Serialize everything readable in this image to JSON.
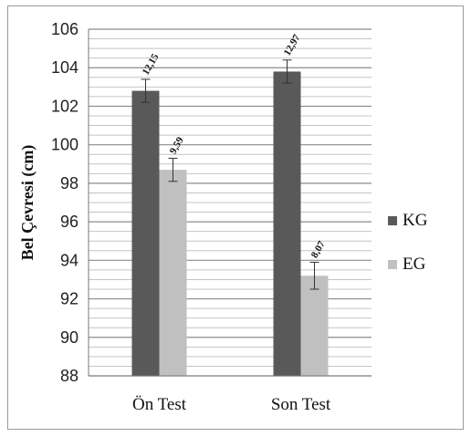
{
  "chart_data": {
    "type": "bar",
    "title": "",
    "xlabel": "",
    "ylabel": "Bel Çevresi (cm)",
    "ylim": [
      88,
      106
    ],
    "ytick_step": 2,
    "ytick_labels": [
      "88",
      "90",
      "92",
      "94",
      "96",
      "98",
      "100",
      "102",
      "104",
      "106"
    ],
    "minor_grid_step": 0.5,
    "grid": true,
    "legend_position": "right",
    "categories": [
      "Ön Test",
      "Son Test"
    ],
    "series": [
      {
        "name": "KG",
        "color": "#595959",
        "values": [
          102.8,
          103.8
        ],
        "error": [
          0.6,
          0.6
        ],
        "data_labels": [
          "12,15",
          "12,97"
        ]
      },
      {
        "name": "EG",
        "color": "#c0c0c0",
        "values": [
          98.7,
          93.2
        ],
        "error": [
          0.6,
          0.7
        ],
        "data_labels": [
          "9,59",
          "8,07"
        ]
      }
    ]
  }
}
